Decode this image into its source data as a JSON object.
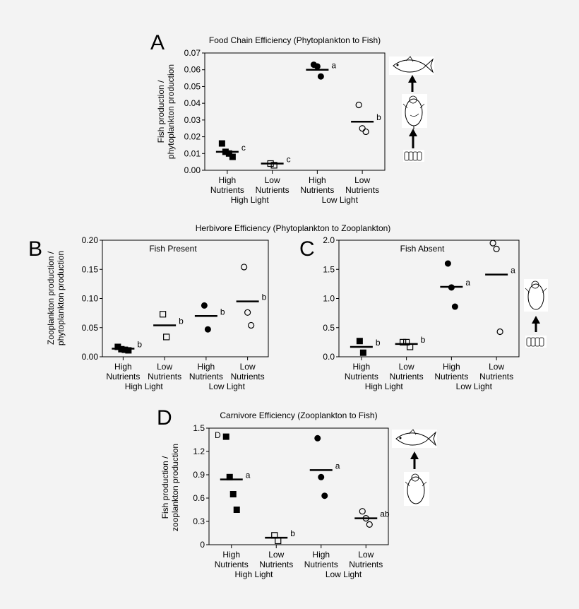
{
  "chart_data": [
    {
      "panel": "A",
      "type": "scatter",
      "title": "Food Chain Efficiency (Phytoplankton to Fish)",
      "subtitle": "",
      "ylabel": [
        "Fish production /",
        "phytoplankton production"
      ],
      "ylim": [
        0,
        0.07
      ],
      "yticks": [
        0.0,
        0.01,
        0.02,
        0.03,
        0.04,
        0.05,
        0.06,
        0.07
      ],
      "ytick_labels": [
        "0.00",
        "0.01",
        "0.02",
        "0.03",
        "0.04",
        "0.05",
        "0.06",
        "0.07"
      ],
      "categories": [
        [
          "High",
          "Nutrients"
        ],
        [
          "Low",
          "Nutrients"
        ],
        [
          "High",
          "Nutrients"
        ],
        [
          "Low",
          "Nutrients"
        ]
      ],
      "groups": [
        "High Light",
        "Low Light"
      ],
      "series": [
        {
          "marker": "square-filled",
          "points": [
            0.016,
            0.011,
            0.01,
            0.008
          ],
          "mean": 0.011,
          "letter": "c"
        },
        {
          "marker": "square-open",
          "points": [
            0.004,
            0.003
          ],
          "mean": 0.004,
          "letter": "c"
        },
        {
          "marker": "circle-filled",
          "points": [
            0.063,
            0.062,
            0.056
          ],
          "mean": 0.06,
          "letter": "a"
        },
        {
          "marker": "circle-open",
          "points": [
            0.039,
            0.025,
            0.023
          ],
          "mean": 0.029,
          "letter": "b"
        }
      ]
    },
    {
      "panel": "B",
      "type": "scatter",
      "title": "Herbivore Efficiency (Phytoplankton to Zooplankton)",
      "subtitle": "Fish Present",
      "ylabel": [
        "Zooplankton production /",
        "phytoplankton production"
      ],
      "ylim": [
        0,
        0.2
      ],
      "yticks": [
        0,
        0.05,
        0.1,
        0.15,
        0.2
      ],
      "ytick_labels": [
        "0.00",
        "0.05",
        "0.10",
        "0.15",
        "0.20"
      ],
      "categories": [
        [
          "High",
          "Nutrients"
        ],
        [
          "Low",
          "Nutrients"
        ],
        [
          "High",
          "Nutrients"
        ],
        [
          "Low",
          "Nutrients"
        ]
      ],
      "groups": [
        "High Light",
        "Low Light"
      ],
      "series": [
        {
          "marker": "square-filled",
          "points": [
            0.017,
            0.013,
            0.012,
            0.011
          ],
          "mean": 0.014,
          "letter": "b"
        },
        {
          "marker": "square-open",
          "points": [
            0.073,
            0.034
          ],
          "mean": 0.054,
          "letter": "b"
        },
        {
          "marker": "circle-filled",
          "points": [
            0.088,
            0.047
          ],
          "mean": 0.07,
          "letter": "b"
        },
        {
          "marker": "circle-open",
          "points": [
            0.154,
            0.076,
            0.054
          ],
          "mean": 0.095,
          "letter": "b"
        }
      ]
    },
    {
      "panel": "C",
      "type": "scatter",
      "title": "",
      "subtitle": "Fish Absent",
      "ylabel": [],
      "ylim": [
        0,
        2.0
      ],
      "yticks": [
        0,
        0.5,
        1.0,
        1.5,
        2.0
      ],
      "ytick_labels": [
        "0.0",
        "0.5",
        "1.0",
        "1.5",
        "2.0"
      ],
      "categories": [
        [
          "High",
          "Nutrients"
        ],
        [
          "Low",
          "Nutrients"
        ],
        [
          "High",
          "Nutrients"
        ],
        [
          "Low",
          "Nutrients"
        ]
      ],
      "groups": [
        "High Light",
        "Low Light"
      ],
      "series": [
        {
          "marker": "square-filled",
          "points": [
            0.27,
            0.07
          ],
          "mean": 0.17,
          "letter": "b"
        },
        {
          "marker": "square-open",
          "points": [
            0.25,
            0.25,
            0.17
          ],
          "mean": 0.22,
          "letter": "b"
        },
        {
          "marker": "circle-filled",
          "points": [
            1.6,
            1.19,
            0.86
          ],
          "mean": 1.2,
          "letter": "a"
        },
        {
          "marker": "circle-open",
          "points": [
            1.95,
            1.85,
            0.43
          ],
          "mean": 1.41,
          "letter": "a"
        }
      ]
    },
    {
      "panel": "D",
      "type": "scatter",
      "title": "Carnivore Efficiency (Zooplankton to Fish)",
      "subtitle": "D",
      "ylabel": [
        "Fish production /",
        "zooplankton production"
      ],
      "ylim": [
        0,
        1.5
      ],
      "yticks": [
        0,
        0.3,
        0.6,
        0.9,
        1.2,
        1.5
      ],
      "ytick_labels": [
        "0",
        "0.3",
        "0.6",
        "0.9",
        "1.2",
        "1.5"
      ],
      "categories": [
        [
          "High",
          "Nutrients"
        ],
        [
          "Low",
          "Nutrients"
        ],
        [
          "High",
          "Nutrients"
        ],
        [
          "Low",
          "Nutrients"
        ]
      ],
      "groups": [
        "High Light",
        "Low Light"
      ],
      "series": [
        {
          "marker": "square-filled",
          "points": [
            1.39,
            0.87,
            0.65,
            0.45
          ],
          "mean": 0.84,
          "letter": "a"
        },
        {
          "marker": "square-open",
          "points": [
            0.12,
            0.05
          ],
          "mean": 0.09,
          "letter": "b"
        },
        {
          "marker": "circle-filled",
          "points": [
            1.37,
            0.87,
            0.63
          ],
          "mean": 0.96,
          "letter": "a"
        },
        {
          "marker": "circle-open",
          "points": [
            0.43,
            0.34,
            0.26
          ],
          "mean": 0.34,
          "letter": "ab"
        }
      ]
    }
  ],
  "panel_letters": {
    "A": "A",
    "B": "B",
    "C": "C",
    "D": "D"
  },
  "section_title_bc": "Herbivore Efficiency (Phytoplankton to Zooplankton)",
  "illustrations": {
    "a": [
      "fish-icon",
      "zooplankton-icon",
      "phytoplankton-icon"
    ],
    "c": [
      "zooplankton-icon",
      "phytoplankton-icon"
    ],
    "d": [
      "fish-icon",
      "zooplankton-icon"
    ]
  }
}
